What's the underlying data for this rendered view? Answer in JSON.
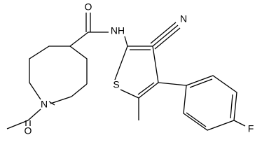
{
  "atoms": [
    {
      "label": "O"
    },
    {
      "label": "NH"
    },
    {
      "label": "N"
    },
    {
      "label": "N"
    },
    {
      "label": "S"
    },
    {
      "label": "O"
    },
    {
      "label": "F"
    }
  ]
}
